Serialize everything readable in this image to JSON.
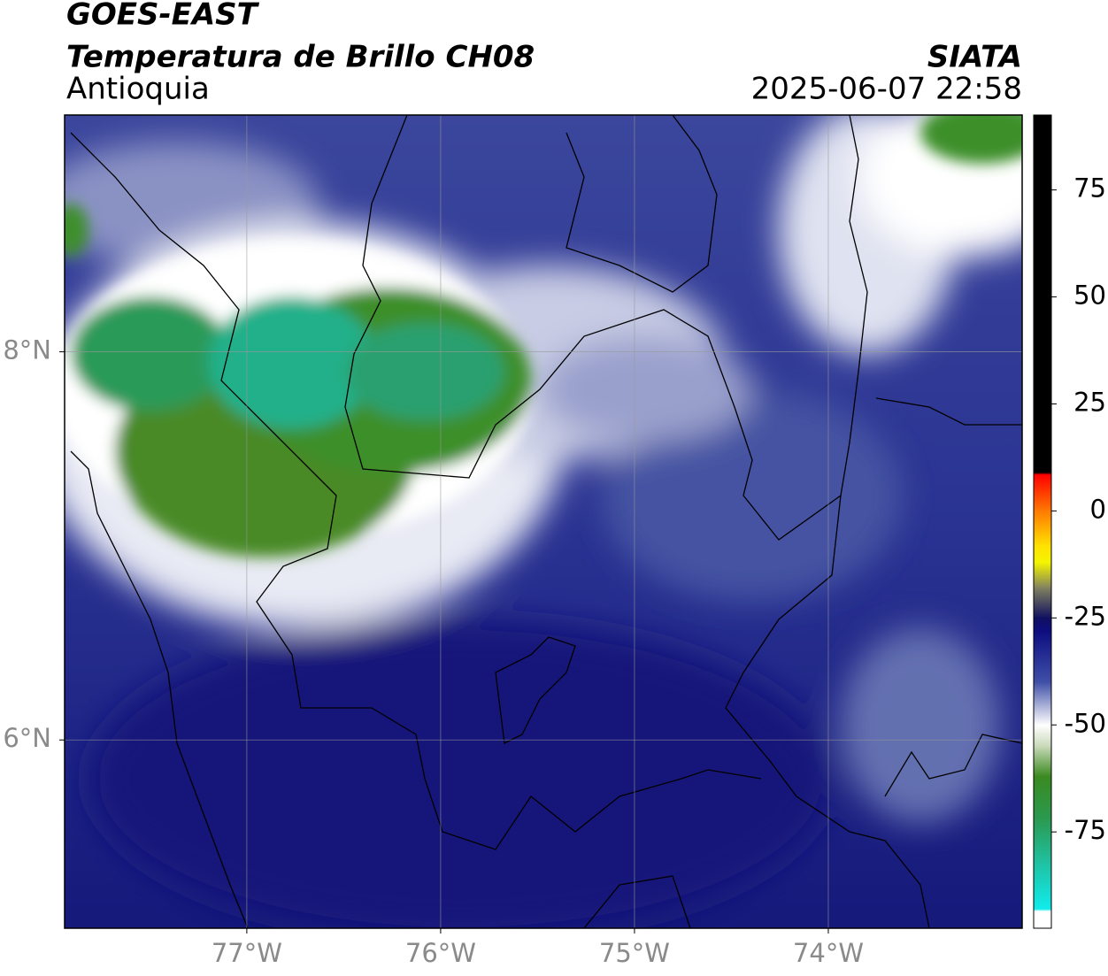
{
  "chart_data": {
    "type": "map",
    "title": "GOES-EAST",
    "subtitle": "Temperatura de Brillo CH08",
    "region": "Antioquia",
    "source": "SIATA",
    "timestamp": "2025-06-07 22:58",
    "xlim": [
      -77.94,
      -73.0
    ],
    "ylim": [
      5.03,
      9.22
    ],
    "xticks": [
      {
        "value": -77,
        "label": "77°W"
      },
      {
        "value": -76,
        "label": "76°W"
      },
      {
        "value": -75,
        "label": "75°W"
      },
      {
        "value": -74,
        "label": "74°W"
      }
    ],
    "yticks": [
      {
        "value": 8,
        "label": "8°N"
      },
      {
        "value": 6,
        "label": "6°N"
      }
    ],
    "grid": true,
    "colorbar": {
      "lim": [
        -97.5,
        92.5
      ],
      "ticks": [
        75,
        50,
        25,
        0,
        -25,
        -50,
        -75
      ],
      "stops": [
        {
          "value": 92.5,
          "color": "#000000"
        },
        {
          "value": 9,
          "color": "#000000"
        },
        {
          "value": 8.5,
          "color": "#ff0000"
        },
        {
          "value": 0,
          "color": "#ff7a00"
        },
        {
          "value": -8,
          "color": "#ffe000"
        },
        {
          "value": -12,
          "color": "#f5f500"
        },
        {
          "value": -18,
          "color": "#808060"
        },
        {
          "value": -25,
          "color": "#101060"
        },
        {
          "value": -28,
          "color": "#0d0d80"
        },
        {
          "value": -40,
          "color": "#4050a8"
        },
        {
          "value": -50,
          "color": "#ffffff"
        },
        {
          "value": -55,
          "color": "#c8d8b8"
        },
        {
          "value": -62,
          "color": "#3a8a20"
        },
        {
          "value": -72,
          "color": "#2a9a50"
        },
        {
          "value": -82,
          "color": "#20c0a0"
        },
        {
          "value": -93,
          "color": "#10ecec"
        },
        {
          "value": -93.5,
          "color": "#ffffff"
        },
        {
          "value": -97.5,
          "color": "#ffffff"
        }
      ]
    }
  }
}
